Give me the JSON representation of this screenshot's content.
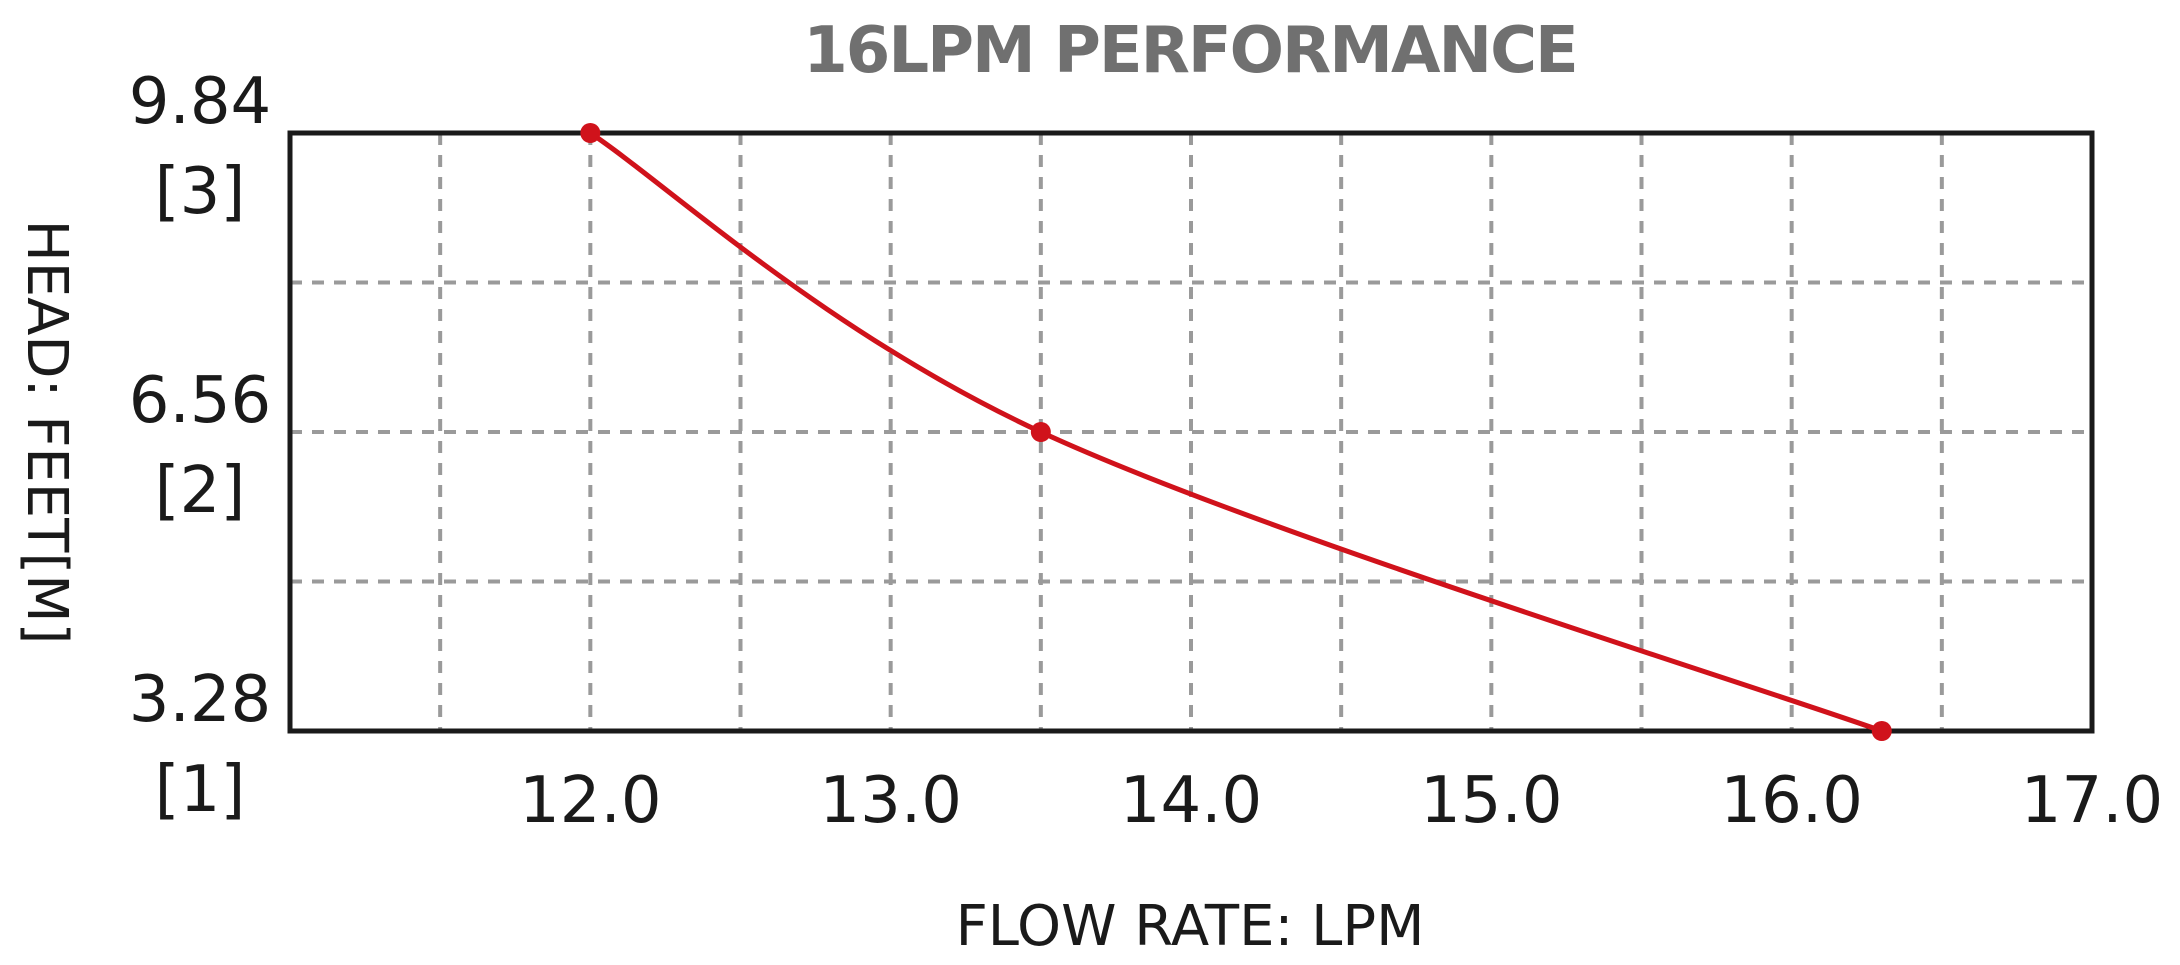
{
  "chart_data": {
    "type": "line",
    "title": "16LPM PERFORMANCE",
    "xlabel": "FLOW RATE: LPM",
    "ylabel": "HEAD: FEET[M]",
    "x_ticks": [
      "12.0",
      "13.0",
      "14.0",
      "15.0",
      "16.0",
      "17.0"
    ],
    "y_ticks": [
      {
        "feet": "9.84",
        "meters": "[3]"
      },
      {
        "feet": "6.56",
        "meters": "[2]"
      },
      {
        "feet": "3.28",
        "meters": "[1]"
      }
    ],
    "xlim": [
      11.0,
      17.0
    ],
    "ylim": [
      3.28,
      9.84
    ],
    "grid": true,
    "series": [
      {
        "color": "#d0121b",
        "x": [
          12.0,
          13.5,
          16.3
        ],
        "y": [
          9.84,
          6.56,
          3.28
        ]
      }
    ]
  }
}
